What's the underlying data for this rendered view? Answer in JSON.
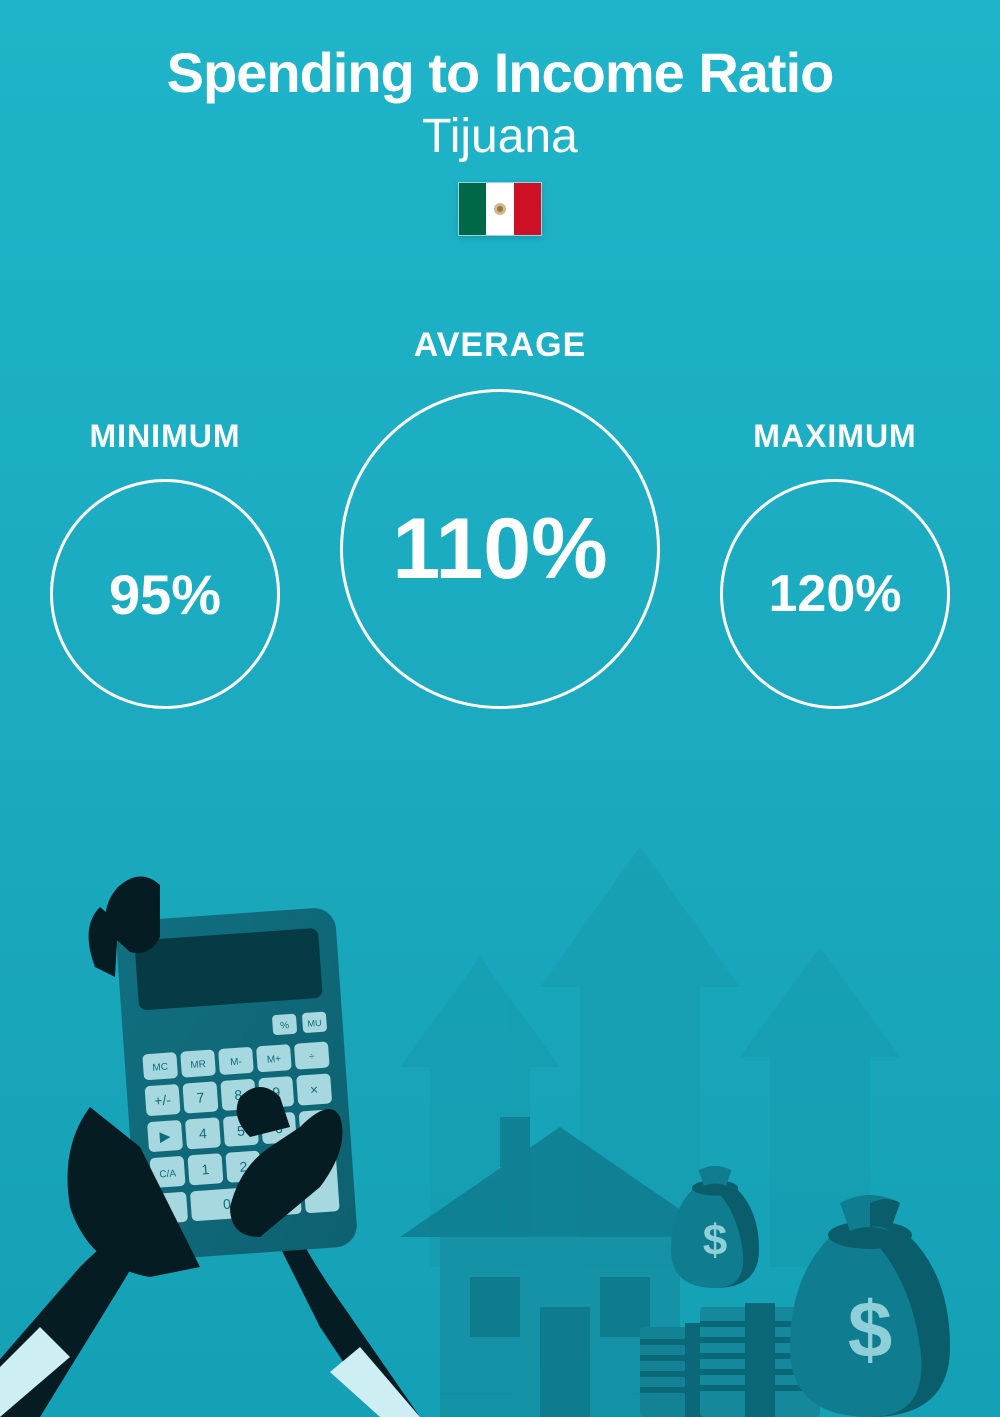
{
  "header": {
    "title": "Spending to Income Ratio",
    "subtitle": "Tijuana",
    "flag": {
      "name": "mexico-flag",
      "colors": [
        "#006847",
        "#ffffff",
        "#ce1126"
      ]
    }
  },
  "metrics": {
    "minimum": {
      "label": "MINIMUM",
      "value": "95%",
      "circle_diameter": 230,
      "value_fontsize": 56,
      "label_fontsize": 32
    },
    "average": {
      "label": "AVERAGE",
      "value": "110%",
      "circle_diameter": 320,
      "value_fontsize": 86,
      "label_fontsize": 34
    },
    "maximum": {
      "label": "MAXIMUM",
      "value": "120%",
      "circle_diameter": 230,
      "value_fontsize": 52,
      "label_fontsize": 32
    }
  },
  "style": {
    "bg_gradient_top": "#1fb4c9",
    "bg_gradient_bottom": "#14a0b5",
    "text_color": "#ffffff",
    "circle_border_color": "#ffffff",
    "circle_border_width": 3,
    "title_fontsize": 56,
    "subtitle_fontsize": 48
  },
  "illustration": {
    "arrows_color": "#169aae",
    "house_fill": "#1590a3",
    "house_roof": "#0f7d8f",
    "calc_body": "#0f6a7a",
    "calc_dark": "#063b45",
    "calc_btn": "#a8d8df",
    "hand_dark": "#041c22",
    "cuff": "#cdeef3",
    "moneybag": "#0f7d8f",
    "moneybag_dark": "#0a5e6c",
    "dollar": "#8fcfd8",
    "cash_stack": "#128294",
    "cash_band": "#0a6878"
  }
}
